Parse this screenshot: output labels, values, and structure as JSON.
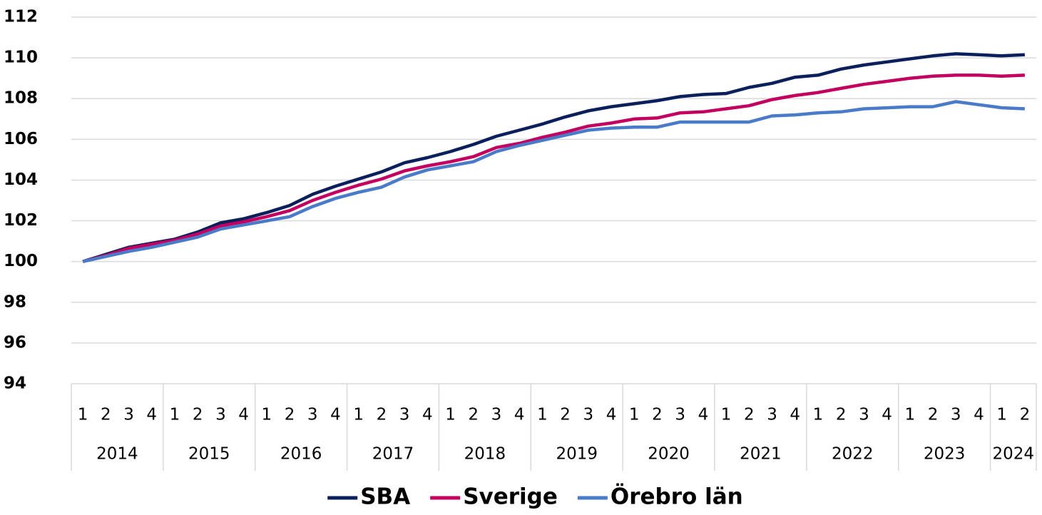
{
  "chart_data": {
    "type": "line",
    "groups": [
      {
        "label": "2014",
        "categories": [
          "1",
          "2",
          "3",
          "4"
        ]
      },
      {
        "label": "2015",
        "categories": [
          "1",
          "2",
          "3",
          "4"
        ]
      },
      {
        "label": "2016",
        "categories": [
          "1",
          "2",
          "3",
          "4"
        ]
      },
      {
        "label": "2017",
        "categories": [
          "1",
          "2",
          "3",
          "4"
        ]
      },
      {
        "label": "2018",
        "categories": [
          "1",
          "2",
          "3",
          "4"
        ]
      },
      {
        "label": "2019",
        "categories": [
          "1",
          "2",
          "3",
          "4"
        ]
      },
      {
        "label": "2020",
        "categories": [
          "1",
          "2",
          "3",
          "4"
        ]
      },
      {
        "label": "2021",
        "categories": [
          "1",
          "2",
          "3",
          "4"
        ]
      },
      {
        "label": "2022",
        "categories": [
          "1",
          "2",
          "3",
          "4"
        ]
      },
      {
        "label": "2023",
        "categories": [
          "1",
          "2",
          "3",
          "4"
        ]
      },
      {
        "label": "2024",
        "categories": [
          "1",
          "2"
        ]
      }
    ],
    "series": [
      {
        "name": "SBA",
        "color": "#0b1f5c",
        "values": [
          100,
          100.35,
          100.7,
          100.9,
          101.1,
          101.45,
          101.9,
          102.1,
          102.4,
          102.75,
          103.3,
          103.7,
          104.05,
          104.4,
          104.85,
          105.1,
          105.4,
          105.75,
          106.15,
          106.45,
          106.75,
          107.1,
          107.4,
          107.6,
          107.75,
          107.9,
          108.1,
          108.2,
          108.25,
          108.55,
          108.75,
          109.05,
          109.15,
          109.45,
          109.65,
          109.8,
          109.95,
          110.1,
          110.2,
          110.15,
          110.1,
          110.15
        ]
      },
      {
        "name": "Sverige",
        "color": "#c3005f",
        "values": [
          100,
          100.3,
          100.65,
          100.85,
          101.05,
          101.35,
          101.75,
          101.95,
          102.2,
          102.5,
          103.0,
          103.4,
          103.75,
          104.05,
          104.45,
          104.7,
          104.9,
          105.15,
          105.6,
          105.8,
          106.1,
          106.35,
          106.65,
          106.8,
          107.0,
          107.05,
          107.3,
          107.35,
          107.5,
          107.65,
          107.95,
          108.15,
          108.3,
          108.5,
          108.7,
          108.85,
          109.0,
          109.1,
          109.15,
          109.15,
          109.1,
          109.15
        ]
      },
      {
        "name": "Örebro län",
        "color": "#4a7bc8",
        "values": [
          100,
          100.25,
          100.5,
          100.7,
          100.95,
          101.2,
          101.6,
          101.8,
          102.0,
          102.2,
          102.7,
          103.1,
          103.4,
          103.65,
          104.15,
          104.5,
          104.7,
          104.9,
          105.4,
          105.7,
          105.95,
          106.2,
          106.45,
          106.55,
          106.6,
          106.6,
          106.85,
          106.85,
          106.85,
          106.85,
          107.15,
          107.2,
          107.3,
          107.35,
          107.5,
          107.55,
          107.6,
          107.6,
          107.85,
          107.7,
          107.55,
          107.5
        ]
      }
    ],
    "ylim": [
      94,
      112
    ],
    "yticks": [
      94,
      96,
      98,
      100,
      102,
      104,
      106,
      108,
      110,
      112
    ],
    "grid": true,
    "legend": "bottom"
  }
}
